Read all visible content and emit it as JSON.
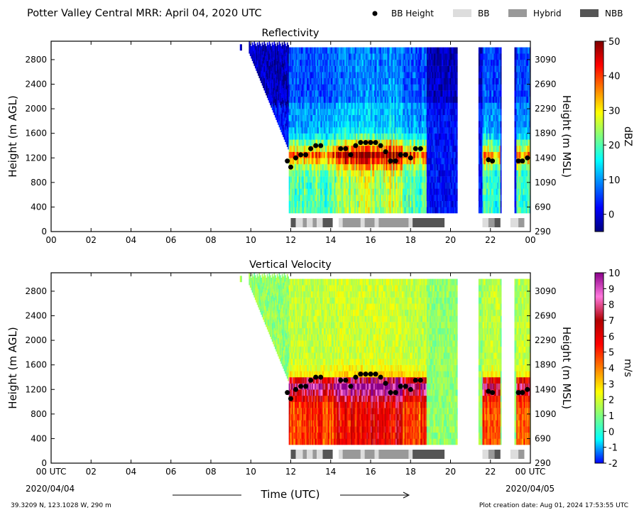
{
  "header": {
    "title": "Potter Valley Central MRR:  April 04, 2020 UTC",
    "legend": [
      {
        "label": "BB Height",
        "symbol": "dot",
        "color": "#000000"
      },
      {
        "label": "BB",
        "symbol": "box",
        "color": "#dddddd"
      },
      {
        "label": "Hybrid",
        "symbol": "box",
        "color": "#999999"
      },
      {
        "label": "NBB",
        "symbol": "box",
        "color": "#555555"
      }
    ]
  },
  "footer": {
    "location": "39.3209 N, 123.1028 W, 290 m",
    "creation": "Plot creation date: Aug 01, 2024 17:53:55 UTC",
    "xaxis_title": "Time (UTC)",
    "start_date": "2020/04/04",
    "end_date": "2020/04/05"
  },
  "chart_data": [
    {
      "type": "heatmap",
      "title": "Reflectivity",
      "ylabel": "Height (m AGL)",
      "y2label": "Height (m MSL)",
      "colorbar_label": "dBZ",
      "x_ticks": [
        "00",
        "02",
        "04",
        "06",
        "08",
        "10",
        "12",
        "14",
        "16",
        "18",
        "20",
        "22",
        "00"
      ],
      "y_ticks": [
        0,
        400,
        800,
        1200,
        1600,
        2000,
        2400,
        2800
      ],
      "y2_ticks": [
        290,
        690,
        1090,
        1490,
        1890,
        2290,
        2690,
        3090
      ],
      "xlim": [
        0,
        24
      ],
      "ylim": [
        0,
        3100
      ],
      "colorbar_ticks": [
        0,
        10,
        20,
        30,
        40,
        50
      ],
      "colorbar_range": [
        -5,
        50
      ],
      "colors": [
        "#00007f",
        "#0000ff",
        "#007fff",
        "#00ffff",
        "#7fff7f",
        "#ffff00",
        "#ff7f00",
        "#ff0000",
        "#7f0000"
      ]
    },
    {
      "type": "heatmap",
      "title": "Vertical Velocity",
      "ylabel": "Height (m AGL)",
      "y2label": "Height (m MSL)",
      "colorbar_label": "m/s",
      "x_ticks": [
        "00 UTC",
        "02",
        "04",
        "06",
        "08",
        "10",
        "12",
        "14",
        "16",
        "18",
        "20",
        "22",
        "00 UTC"
      ],
      "y_ticks": [
        0,
        400,
        800,
        1200,
        1600,
        2000,
        2400,
        2800
      ],
      "y2_ticks": [
        290,
        690,
        1090,
        1490,
        1890,
        2290,
        2690,
        3090
      ],
      "xlim": [
        0,
        24
      ],
      "ylim": [
        0,
        3100
      ],
      "colorbar_ticks": [
        -2,
        -1,
        0,
        1,
        2,
        3,
        4,
        5,
        6,
        7,
        8,
        9,
        10
      ],
      "colorbar_range": [
        -2,
        10
      ],
      "colors": [
        "#0000ff",
        "#00ffff",
        "#7fff7f",
        "#ffff00",
        "#ff7f00",
        "#ff0000",
        "#b00000",
        "#ff77dd",
        "#8b008b"
      ]
    }
  ],
  "bb_height": {
    "x": [
      11.83,
      12.0,
      12.25,
      12.5,
      12.75,
      13.0,
      13.25,
      13.5,
      14.5,
      14.75,
      15.0,
      15.25,
      15.5,
      15.75,
      16.0,
      16.25,
      16.5,
      16.75,
      17.0,
      17.25,
      17.5,
      17.75,
      18.0,
      18.25,
      18.5,
      21.9,
      22.1,
      23.4,
      23.6,
      23.85
    ],
    "y": [
      1150,
      1050,
      1200,
      1250,
      1250,
      1350,
      1400,
      1400,
      1350,
      1350,
      1250,
      1400,
      1450,
      1450,
      1450,
      1450,
      1400,
      1300,
      1150,
      1150,
      1250,
      1250,
      1200,
      1350,
      1350,
      1170,
      1150,
      1150,
      1150,
      1200
    ]
  },
  "bb_type_strip": [
    {
      "start": 12.0,
      "end": 12.25,
      "type": "NBB"
    },
    {
      "start": 12.25,
      "end": 12.6,
      "type": "BB"
    },
    {
      "start": 12.6,
      "end": 12.8,
      "type": "Hybrid"
    },
    {
      "start": 12.8,
      "end": 13.1,
      "type": "BB"
    },
    {
      "start": 13.1,
      "end": 13.3,
      "type": "Hybrid"
    },
    {
      "start": 13.3,
      "end": 13.6,
      "type": "BB"
    },
    {
      "start": 13.6,
      "end": 14.1,
      "type": "NBB"
    },
    {
      "start": 14.4,
      "end": 14.6,
      "type": "BB"
    },
    {
      "start": 14.6,
      "end": 15.5,
      "type": "Hybrid"
    },
    {
      "start": 15.5,
      "end": 15.7,
      "type": "BB"
    },
    {
      "start": 15.7,
      "end": 16.2,
      "type": "Hybrid"
    },
    {
      "start": 16.2,
      "end": 16.4,
      "type": "BB"
    },
    {
      "start": 16.4,
      "end": 17.9,
      "type": "Hybrid"
    },
    {
      "start": 17.9,
      "end": 18.1,
      "type": "BB"
    },
    {
      "start": 18.1,
      "end": 19.7,
      "type": "NBB"
    },
    {
      "start": 21.6,
      "end": 21.9,
      "type": "BB"
    },
    {
      "start": 21.9,
      "end": 22.2,
      "type": "Hybrid"
    },
    {
      "start": 22.2,
      "end": 22.5,
      "type": "NBB"
    },
    {
      "start": 23.0,
      "end": 23.4,
      "type": "BB"
    },
    {
      "start": 23.4,
      "end": 23.7,
      "type": "Hybrid"
    }
  ]
}
